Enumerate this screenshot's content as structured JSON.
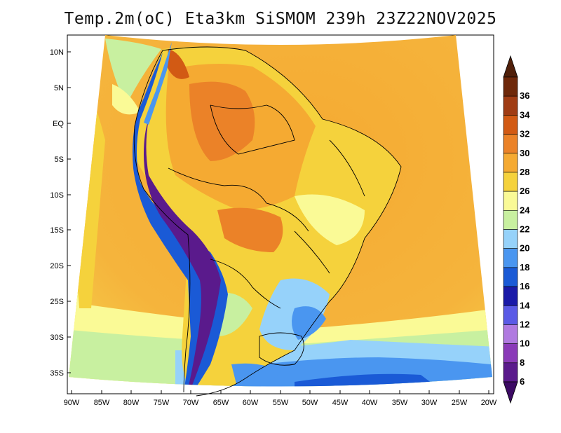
{
  "title": "Temp.2m(oC) Eta3km SiSMOM 239h 23Z22NOV2025",
  "lat_ticks": [
    "10N",
    "5N",
    "EQ",
    "5S",
    "10S",
    "15S",
    "20S",
    "25S",
    "30S",
    "35S"
  ],
  "lon_ticks": [
    "90W",
    "85W",
    "80W",
    "75W",
    "70W",
    "65W",
    "60W",
    "55W",
    "50W",
    "45W",
    "40W",
    "35W",
    "30W",
    "25W",
    "20W"
  ],
  "colorbar": {
    "labels": [
      "6",
      "8",
      "10",
      "12",
      "14",
      "16",
      "18",
      "20",
      "22",
      "24",
      "26",
      "28",
      "30",
      "32",
      "34",
      "36"
    ],
    "colors": [
      "#5a1a8c",
      "#8a3ab8",
      "#b07ae0",
      "#5a5ae6",
      "#1a1aa8",
      "#1a5ad6",
      "#4a96f0",
      "#96d2fa",
      "#c8f0a0",
      "#fafa96",
      "#f5d23c",
      "#f5aa32",
      "#eb8228",
      "#d25a14",
      "#a03c14",
      "#6e280a"
    ],
    "low_arrow_color": "#3c0a64",
    "high_arrow_color": "#50200a"
  }
}
